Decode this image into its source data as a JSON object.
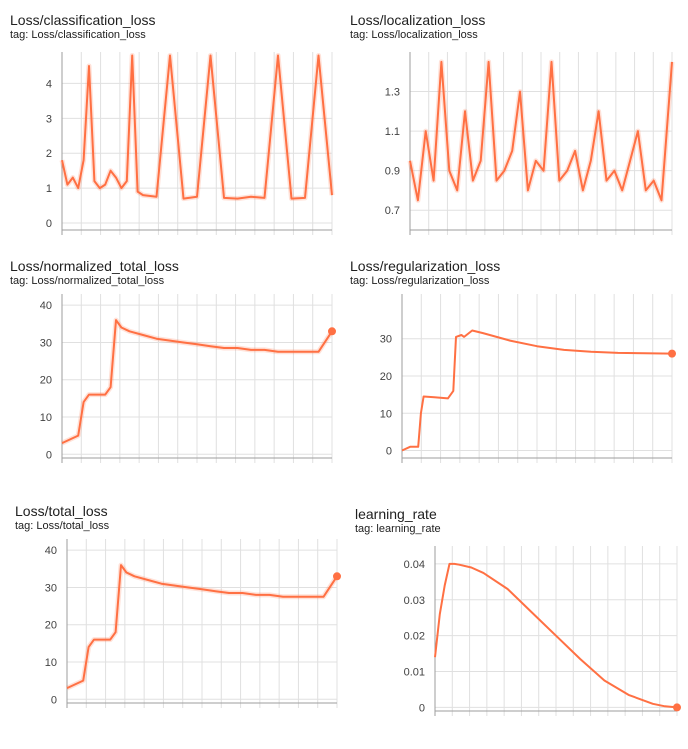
{
  "accent_color": "#ff7043",
  "chart_data": [
    {
      "type": "line",
      "title": "Loss/classification_loss",
      "subtitle": "tag: Loss/classification_loss",
      "ylim": [
        -0.2,
        4.9
      ],
      "yticks": [
        "0",
        "1",
        "2",
        "3",
        "4"
      ],
      "ytick_values": [
        0,
        1,
        2,
        3,
        4
      ],
      "grid": true,
      "series": [
        {
          "x": [
            0,
            0.02,
            0.04,
            0.06,
            0.08,
            0.1,
            0.12,
            0.14,
            0.16,
            0.18,
            0.2,
            0.22,
            0.24,
            0.26,
            0.28,
            0.3,
            0.35,
            0.4,
            0.45,
            0.5,
            0.55,
            0.6,
            0.65,
            0.7,
            0.75,
            0.8,
            0.85,
            0.9,
            0.95,
            1.0
          ],
          "y": [
            1.8,
            1.1,
            1.3,
            1.0,
            1.8,
            4.5,
            1.2,
            1.0,
            1.1,
            1.5,
            1.3,
            1.0,
            1.2,
            4.8,
            0.9,
            0.8,
            0.75,
            4.8,
            0.7,
            0.75,
            4.8,
            0.72,
            0.7,
            0.75,
            0.72,
            4.8,
            0.7,
            0.72,
            4.8,
            0.8
          ]
        }
      ]
    },
    {
      "type": "line",
      "title": "Loss/localization_loss",
      "subtitle": "tag: Loss/localization_loss",
      "ylim": [
        0.6,
        1.5
      ],
      "yticks": [
        "0.7",
        "0.9",
        "1.1",
        "1.3"
      ],
      "ytick_values": [
        0.7,
        0.9,
        1.1,
        1.3
      ],
      "grid": true,
      "series": [
        {
          "x": [
            0,
            0.03,
            0.06,
            0.09,
            0.12,
            0.15,
            0.18,
            0.21,
            0.24,
            0.27,
            0.3,
            0.33,
            0.36,
            0.39,
            0.42,
            0.45,
            0.48,
            0.51,
            0.54,
            0.57,
            0.6,
            0.63,
            0.66,
            0.69,
            0.72,
            0.75,
            0.78,
            0.81,
            0.84,
            0.87,
            0.9,
            0.93,
            0.96,
            1.0
          ],
          "y": [
            0.95,
            0.75,
            1.1,
            0.85,
            1.45,
            0.9,
            0.8,
            1.2,
            0.85,
            0.95,
            1.45,
            0.85,
            0.9,
            1.0,
            1.3,
            0.8,
            0.95,
            0.9,
            1.45,
            0.85,
            0.9,
            1.0,
            0.8,
            0.95,
            1.2,
            0.85,
            0.9,
            0.8,
            0.95,
            1.1,
            0.8,
            0.85,
            0.75,
            1.45
          ]
        }
      ]
    },
    {
      "type": "line",
      "title": "Loss/normalized_total_loss",
      "subtitle": "tag: Loss/normalized_total_loss",
      "ylim": [
        -1,
        43
      ],
      "yticks": [
        "0",
        "10",
        "20",
        "30",
        "40"
      ],
      "ytick_values": [
        0,
        10,
        20,
        30,
        40
      ],
      "grid": true,
      "series": [
        {
          "x": [
            0,
            0.03,
            0.06,
            0.08,
            0.1,
            0.13,
            0.16,
            0.18,
            0.2,
            0.22,
            0.25,
            0.3,
            0.35,
            0.4,
            0.45,
            0.5,
            0.55,
            0.6,
            0.65,
            0.7,
            0.75,
            0.8,
            0.85,
            0.9,
            0.95,
            1.0
          ],
          "y": [
            3,
            4,
            5,
            14,
            16,
            16,
            16,
            18,
            36,
            34,
            33,
            32,
            31,
            30.5,
            30,
            29.5,
            29,
            28.5,
            28.5,
            28,
            28,
            27.5,
            27.5,
            27.5,
            27.5,
            33
          ]
        }
      ]
    },
    {
      "type": "line",
      "title": "Loss/regularization_loss",
      "subtitle": "tag: Loss/regularization_loss",
      "ylim": [
        -2,
        42
      ],
      "yticks": [
        "0",
        "10",
        "20",
        "30"
      ],
      "ytick_values": [
        0,
        10,
        20,
        30
      ],
      "grid": true,
      "series": [
        {
          "x": [
            0,
            0.03,
            0.06,
            0.07,
            0.08,
            0.12,
            0.17,
            0.19,
            0.2,
            0.22,
            0.23,
            0.26,
            0.3,
            0.4,
            0.5,
            0.6,
            0.7,
            0.8,
            0.9,
            1.0
          ],
          "y": [
            0,
            1,
            1,
            10,
            14.5,
            14.3,
            14,
            16,
            30.5,
            31,
            30.5,
            32.2,
            31.5,
            29.5,
            28,
            27,
            26.5,
            26.2,
            26.1,
            26
          ]
        }
      ]
    },
    {
      "type": "line",
      "title": "Loss/total_loss",
      "subtitle": "tag: Loss/total_loss",
      "ylim": [
        -1,
        43
      ],
      "yticks": [
        "0",
        "10",
        "20",
        "30",
        "40"
      ],
      "ytick_values": [
        0,
        10,
        20,
        30,
        40
      ],
      "grid": true,
      "series": [
        {
          "x": [
            0,
            0.03,
            0.06,
            0.08,
            0.1,
            0.13,
            0.16,
            0.18,
            0.2,
            0.22,
            0.25,
            0.3,
            0.35,
            0.4,
            0.45,
            0.5,
            0.55,
            0.6,
            0.65,
            0.7,
            0.75,
            0.8,
            0.85,
            0.9,
            0.95,
            1.0
          ],
          "y": [
            3,
            4,
            5,
            14,
            16,
            16,
            16,
            18,
            36,
            34,
            33,
            32,
            31,
            30.5,
            30,
            29.5,
            29,
            28.5,
            28.5,
            28,
            28,
            27.5,
            27.5,
            27.5,
            27.5,
            33
          ]
        }
      ]
    },
    {
      "type": "line",
      "title": "learning_rate",
      "subtitle": "tag: learning_rate",
      "ylim": [
        -0.001,
        0.045
      ],
      "yticks": [
        "0",
        "0.01",
        "0.02",
        "0.03",
        "0.04"
      ],
      "ytick_values": [
        0,
        0.01,
        0.02,
        0.03,
        0.04
      ],
      "grid": true,
      "series": [
        {
          "x": [
            0,
            0.02,
            0.04,
            0.06,
            0.08,
            0.1,
            0.15,
            0.2,
            0.3,
            0.4,
            0.5,
            0.6,
            0.7,
            0.8,
            0.9,
            0.95,
            1.0
          ],
          "y": [
            0.014,
            0.026,
            0.034,
            0.04,
            0.04,
            0.0398,
            0.039,
            0.0375,
            0.033,
            0.0265,
            0.02,
            0.0135,
            0.0075,
            0.0035,
            0.001,
            0.0003,
            0
          ]
        }
      ]
    }
  ]
}
